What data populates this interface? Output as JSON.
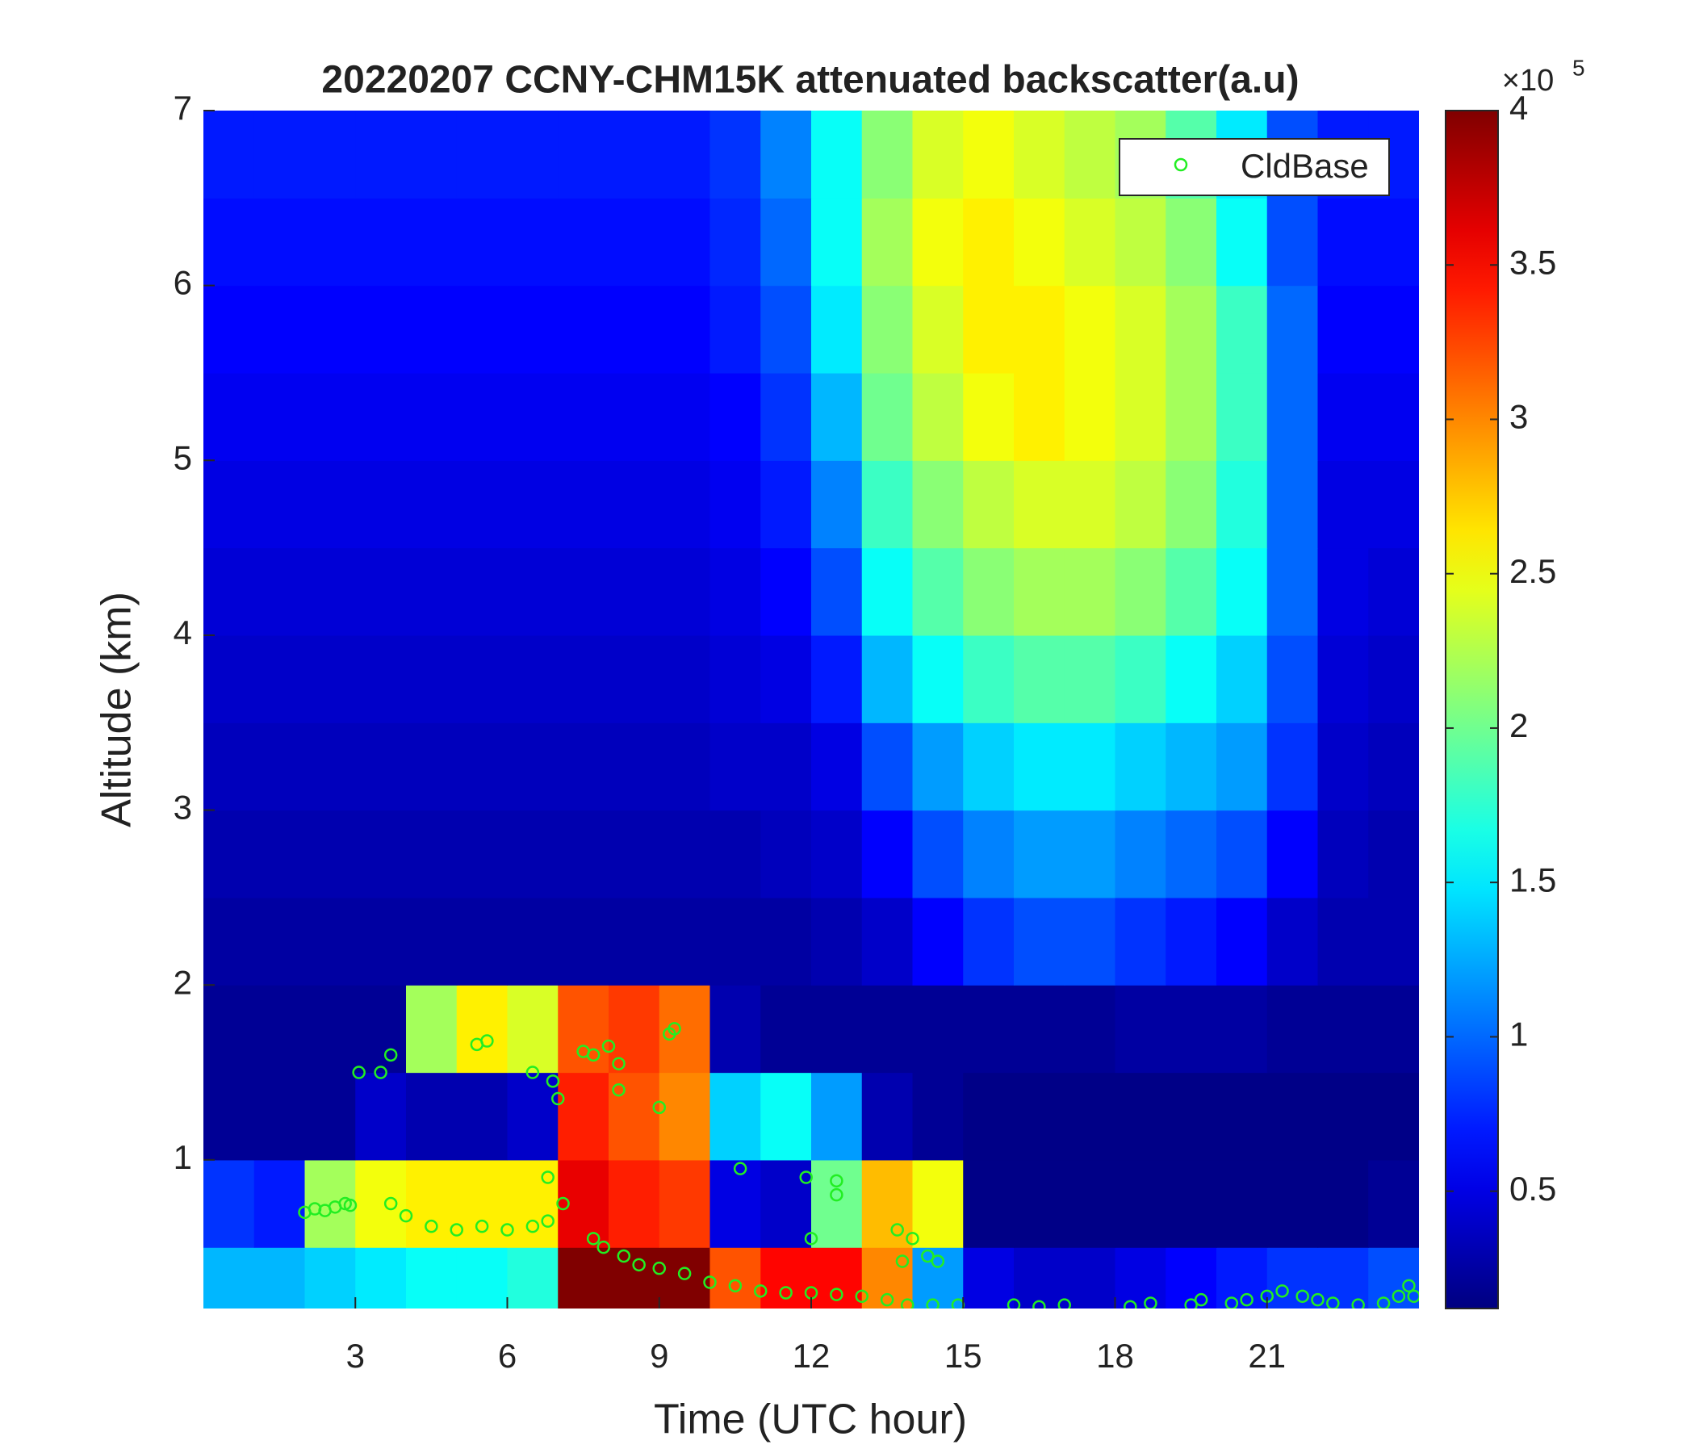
{
  "chart_data": {
    "type": "heatmap",
    "title": "20220207 CCNY-CHM15K attenuated backscatter(a.u)",
    "xlabel": "Time (UTC hour)",
    "ylabel": "Altitude (km)",
    "xlim": [
      0,
      24
    ],
    "ylim": [
      0.15,
      7
    ],
    "xticks": [
      3,
      6,
      9,
      12,
      15,
      18,
      21
    ],
    "yticks": [
      1,
      2,
      3,
      4,
      5,
      6,
      7
    ],
    "x_edges": [
      0,
      1,
      2,
      3,
      4,
      5,
      6,
      7,
      8,
      9,
      10,
      11,
      12,
      13,
      14,
      15,
      16,
      17,
      18,
      19,
      20,
      21,
      22,
      23,
      24
    ],
    "y_edges": [
      0.15,
      0.5,
      1,
      1.5,
      2,
      2.5,
      3,
      3.5,
      4,
      4.5,
      5,
      5.5,
      6,
      6.5,
      7
    ],
    "colormap": "jet",
    "clim": [
      0.12,
      4
    ],
    "colorbar_ticks": [
      0.5,
      1,
      1.5,
      2,
      2.5,
      3,
      3.5,
      4
    ],
    "colorbar_base_label": "×10",
    "colorbar_exponent": 5,
    "z": [
      [
        1.3,
        1.3,
        1.4,
        1.5,
        1.6,
        1.6,
        1.7,
        4,
        4,
        4,
        3.2,
        3.5,
        3.5,
        3.0,
        1.2,
        0.5,
        0.4,
        0.4,
        0.5,
        0.6,
        0.7,
        0.8,
        0.8,
        0.9
      ],
      [
        0.8,
        0.7,
        2.2,
        2.5,
        2.6,
        2.6,
        2.6,
        3.6,
        3.4,
        3.3,
        0.5,
        0.4,
        2.0,
        2.8,
        2.5,
        0.15,
        0.15,
        0.15,
        0.15,
        0.15,
        0.15,
        0.15,
        0.15,
        0.2
      ],
      [
        0.2,
        0.2,
        0.2,
        0.4,
        0.3,
        0.3,
        0.4,
        3.4,
        3.2,
        3.0,
        1.4,
        1.6,
        1.2,
        0.3,
        0.2,
        0.15,
        0.15,
        0.15,
        0.15,
        0.15,
        0.15,
        0.15,
        0.15,
        0.15
      ],
      [
        0.2,
        0.2,
        0.2,
        0.2,
        2.2,
        2.6,
        2.4,
        3.2,
        3.3,
        3.1,
        0.3,
        0.2,
        0.2,
        0.2,
        0.2,
        0.2,
        0.2,
        0.2,
        0.25,
        0.25,
        0.25,
        0.2,
        0.2,
        0.2
      ],
      [
        0.25,
        0.25,
        0.25,
        0.25,
        0.25,
        0.25,
        0.25,
        0.25,
        0.25,
        0.25,
        0.25,
        0.25,
        0.3,
        0.4,
        0.6,
        0.8,
        0.9,
        0.9,
        0.8,
        0.7,
        0.6,
        0.4,
        0.3,
        0.3
      ],
      [
        0.3,
        0.3,
        0.3,
        0.3,
        0.3,
        0.3,
        0.3,
        0.3,
        0.3,
        0.3,
        0.3,
        0.35,
        0.4,
        0.6,
        0.9,
        1.1,
        1.2,
        1.2,
        1.1,
        1.0,
        0.9,
        0.6,
        0.35,
        0.3
      ],
      [
        0.35,
        0.35,
        0.35,
        0.35,
        0.35,
        0.35,
        0.35,
        0.35,
        0.35,
        0.35,
        0.4,
        0.4,
        0.5,
        0.9,
        1.2,
        1.4,
        1.5,
        1.5,
        1.4,
        1.3,
        1.2,
        0.8,
        0.4,
        0.35
      ],
      [
        0.4,
        0.4,
        0.4,
        0.4,
        0.4,
        0.4,
        0.4,
        0.4,
        0.4,
        0.4,
        0.45,
        0.5,
        0.7,
        1.3,
        1.6,
        1.8,
        1.9,
        1.9,
        1.8,
        1.6,
        1.4,
        0.9,
        0.45,
        0.4
      ],
      [
        0.45,
        0.45,
        0.45,
        0.45,
        0.45,
        0.45,
        0.45,
        0.45,
        0.45,
        0.45,
        0.5,
        0.6,
        0.9,
        1.6,
        1.9,
        2.1,
        2.2,
        2.2,
        2.1,
        1.9,
        1.6,
        1.0,
        0.5,
        0.45
      ],
      [
        0.5,
        0.5,
        0.5,
        0.5,
        0.5,
        0.5,
        0.5,
        0.5,
        0.5,
        0.5,
        0.55,
        0.7,
        1.1,
        1.8,
        2.1,
        2.3,
        2.4,
        2.4,
        2.3,
        2.1,
        1.7,
        1.0,
        0.5,
        0.5
      ],
      [
        0.55,
        0.55,
        0.55,
        0.55,
        0.55,
        0.55,
        0.55,
        0.55,
        0.55,
        0.55,
        0.6,
        0.8,
        1.3,
        2.0,
        2.3,
        2.5,
        2.6,
        2.5,
        2.4,
        2.2,
        1.8,
        1.0,
        0.55,
        0.55
      ],
      [
        0.6,
        0.6,
        0.6,
        0.6,
        0.6,
        0.6,
        0.6,
        0.6,
        0.6,
        0.6,
        0.7,
        0.9,
        1.5,
        2.1,
        2.4,
        2.6,
        2.6,
        2.5,
        2.4,
        2.2,
        1.8,
        1.0,
        0.6,
        0.6
      ],
      [
        0.65,
        0.65,
        0.65,
        0.65,
        0.65,
        0.65,
        0.65,
        0.65,
        0.65,
        0.65,
        0.75,
        1.0,
        1.6,
        2.2,
        2.5,
        2.6,
        2.5,
        2.4,
        2.3,
        2.1,
        1.6,
        0.9,
        0.65,
        0.65
      ],
      [
        0.7,
        0.7,
        0.7,
        0.7,
        0.7,
        0.7,
        0.7,
        0.7,
        0.7,
        0.7,
        0.8,
        1.1,
        1.6,
        2.1,
        2.4,
        2.5,
        2.4,
        2.3,
        2.2,
        1.9,
        1.5,
        0.9,
        0.7,
        0.7
      ]
    ],
    "legend": "upper right",
    "series": [
      {
        "name": "CldBase",
        "type": "scatter",
        "color": "#22ee22",
        "x": [
          2.0,
          2.2,
          2.4,
          2.6,
          2.8,
          2.9,
          3.07,
          3.5,
          3.7,
          3.7,
          4.0,
          4.5,
          5.0,
          5.5,
          6.0,
          6.5,
          6.8,
          5.4,
          5.6,
          6.5,
          6.8,
          6.9,
          7.0,
          7.1,
          7.5,
          7.7,
          8.0,
          8.2,
          7.7,
          7.9,
          8.3,
          8.6,
          9.0,
          9.2,
          9.3,
          9.0,
          8.2,
          9.5,
          10,
          10.5,
          11,
          11.5,
          12,
          12.5,
          13,
          13.5,
          10.6,
          11.9,
          12.5,
          12.5,
          12.0,
          13.7,
          14.0,
          14.3,
          14.5,
          13.8,
          13.9,
          14.4,
          14.9,
          16.0,
          16.5,
          17.0,
          18.3,
          18.7,
          19.5,
          19.7,
          20.3,
          20.6,
          21.0,
          21.3,
          21.7,
          22.0,
          22.3,
          22.8,
          23.3,
          23.6,
          23.8,
          23.9
        ],
        "y": [
          0.7,
          0.72,
          0.71,
          0.73,
          0.75,
          0.74,
          1.5,
          1.5,
          1.6,
          0.75,
          0.68,
          0.62,
          0.6,
          0.62,
          0.6,
          0.62,
          0.65,
          1.66,
          1.68,
          1.5,
          0.9,
          1.45,
          1.35,
          0.75,
          1.62,
          1.6,
          1.65,
          1.55,
          0.55,
          0.5,
          0.45,
          0.4,
          0.38,
          1.72,
          1.75,
          1.3,
          1.4,
          0.35,
          0.3,
          0.28,
          0.25,
          0.24,
          0.24,
          0.23,
          0.22,
          0.2,
          0.95,
          0.9,
          0.8,
          0.88,
          0.55,
          0.6,
          0.55,
          0.45,
          0.42,
          0.42,
          0.17,
          0.17,
          0.17,
          0.17,
          0.16,
          0.17,
          0.16,
          0.18,
          0.17,
          0.2,
          0.18,
          0.2,
          0.22,
          0.25,
          0.22,
          0.2,
          0.18,
          0.17,
          0.18,
          0.22,
          0.28,
          0.22
        ]
      }
    ]
  }
}
